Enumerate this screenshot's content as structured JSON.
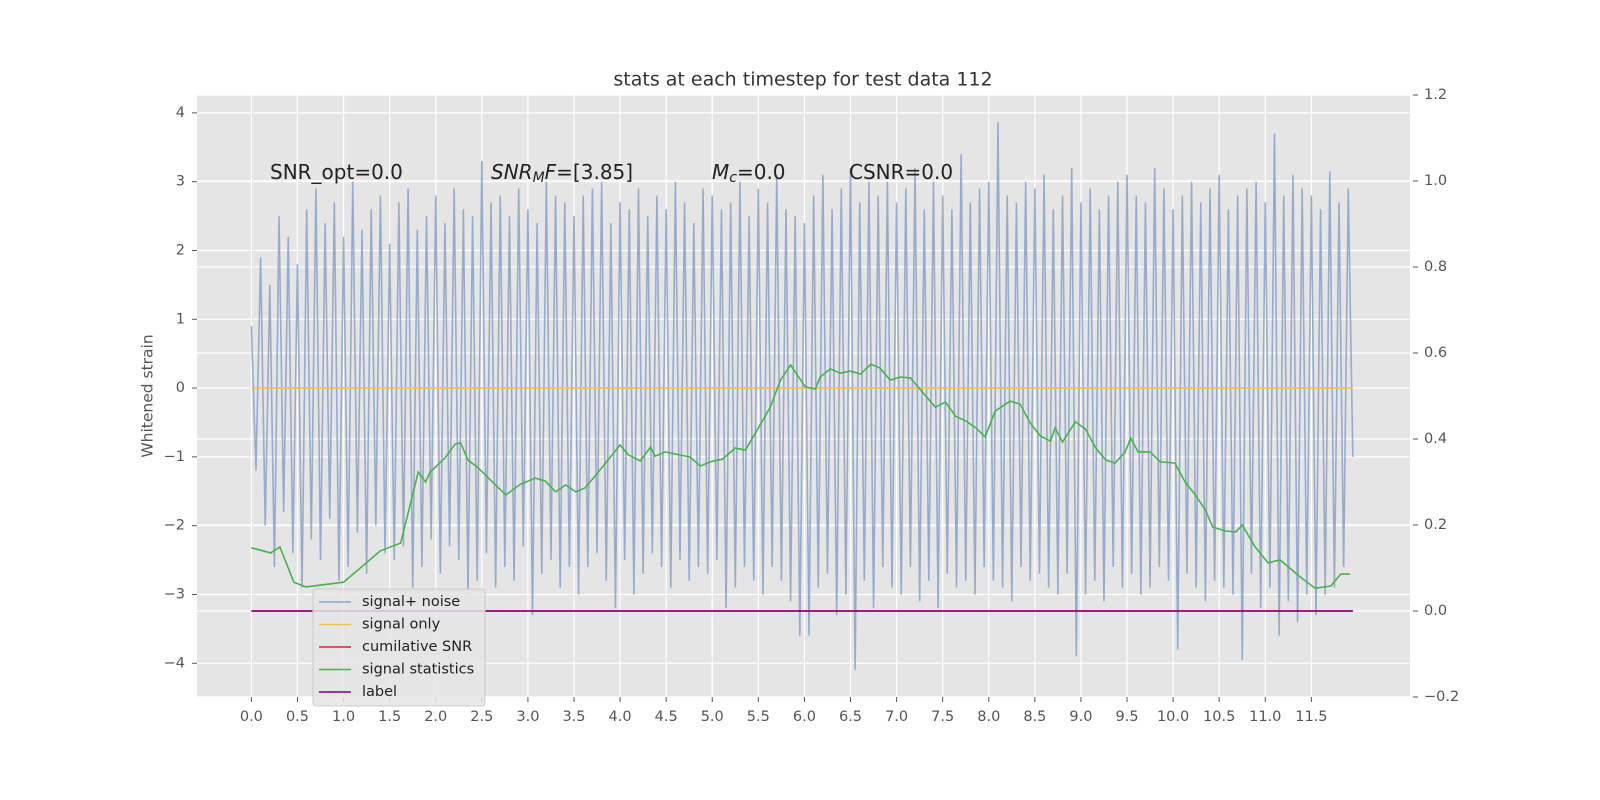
{
  "chart_data": {
    "type": "line",
    "title": "stats at each timestep for test data 112",
    "y_label": "Whitened strain",
    "grid": true,
    "background": "#e5e5e5",
    "legend_position": "lower left",
    "xlim": [
      -0.59,
      12.57
    ],
    "ylim": [
      -4.49,
      4.26
    ],
    "y2lim": [
      -0.2,
      1.2
    ],
    "xticks": [
      {
        "value": 0,
        "label": "0.0"
      },
      {
        "value": 0.5,
        "label": "0.5"
      },
      {
        "value": 1,
        "label": "1.0"
      },
      {
        "value": 1.5,
        "label": "1.5"
      },
      {
        "value": 2,
        "label": "2.0"
      },
      {
        "value": 2.5,
        "label": "2.5"
      },
      {
        "value": 3,
        "label": "3.0"
      },
      {
        "value": 3.5,
        "label": "3.5"
      },
      {
        "value": 4,
        "label": "4.0"
      },
      {
        "value": 4.5,
        "label": "4.5"
      },
      {
        "value": 5,
        "label": "5.0"
      },
      {
        "value": 5.5,
        "label": "5.5"
      },
      {
        "value": 6,
        "label": "6.0"
      },
      {
        "value": 6.5,
        "label": "6.5"
      },
      {
        "value": 7,
        "label": "7.0"
      },
      {
        "value": 7.5,
        "label": "7.5"
      },
      {
        "value": 8,
        "label": "8.0"
      },
      {
        "value": 8.5,
        "label": "8.5"
      },
      {
        "value": 9,
        "label": "9.0"
      },
      {
        "value": 9.5,
        "label": "9.5"
      },
      {
        "value": 10,
        "label": "10.0"
      },
      {
        "value": 10.5,
        "label": "10.5"
      },
      {
        "value": 11,
        "label": "11.0"
      },
      {
        "value": 11.5,
        "label": "11.5"
      }
    ],
    "yticks": [
      {
        "value": -4,
        "label": "−4"
      },
      {
        "value": -3,
        "label": "−3"
      },
      {
        "value": -2,
        "label": "−2"
      },
      {
        "value": -1,
        "label": "−1"
      },
      0,
      1,
      2,
      3,
      4
    ],
    "y2ticks": [
      {
        "value": -0.2,
        "label": "−0.2"
      },
      {
        "value": 0,
        "label": "0.0"
      },
      0.2,
      0.4,
      0.6,
      0.8,
      {
        "value": 1,
        "label": "1.0"
      },
      1.2
    ],
    "annotations": [
      [
        {
          "text": "SNR_opt=0.0"
        }
      ],
      [
        {
          "text": "SNR",
          "italic": true
        },
        {
          "text": "M",
          "italic": true,
          "sub": true
        },
        {
          "text": "F",
          "italic": true
        },
        {
          "text": "=[3.85]"
        }
      ],
      [
        {
          "text": "M",
          "italic": true
        },
        {
          "text": "c",
          "italic": true,
          "sub": true
        },
        {
          "text": "=0.0"
        }
      ],
      [
        {
          "text": "CSNR=0.0"
        }
      ]
    ],
    "series": [
      {
        "name": "signal+ noise",
        "color": "#8fa4c8",
        "axis": "y",
        "x": [
          0,
          0.05,
          0.1,
          0.15,
          0.2,
          0.25,
          0.3,
          0.35,
          0.4,
          0.45,
          0.5,
          0.55,
          0.6,
          0.65,
          0.7,
          0.75,
          0.8,
          0.85,
          0.9,
          0.95,
          1,
          1.05,
          1.1,
          1.15,
          1.2,
          1.25,
          1.3,
          1.35,
          1.4,
          1.45,
          1.5,
          1.55,
          1.6,
          1.65,
          1.7,
          1.75,
          1.8,
          1.85,
          1.9,
          1.95,
          2,
          2.05,
          2.1,
          2.15,
          2.2,
          2.25,
          2.3,
          2.35,
          2.4,
          2.45,
          2.5,
          2.55,
          2.6,
          2.65,
          2.7,
          2.75,
          2.8,
          2.85,
          2.9,
          2.95,
          3,
          3.05,
          3.1,
          3.15,
          3.2,
          3.25,
          3.3,
          3.35,
          3.4,
          3.45,
          3.5,
          3.55,
          3.6,
          3.65,
          3.7,
          3.75,
          3.8,
          3.85,
          3.9,
          3.95,
          4,
          4.05,
          4.1,
          4.15,
          4.2,
          4.25,
          4.3,
          4.35,
          4.4,
          4.45,
          4.5,
          4.55,
          4.6,
          4.65,
          4.7,
          4.75,
          4.8,
          4.85,
          4.9,
          4.95,
          5,
          5.05,
          5.1,
          5.15,
          5.2,
          5.25,
          5.3,
          5.35,
          5.4,
          5.45,
          5.5,
          5.55,
          5.6,
          5.65,
          5.7,
          5.75,
          5.8,
          5.85,
          5.9,
          5.95,
          6,
          6.05,
          6.1,
          6.15,
          6.2,
          6.25,
          6.3,
          6.35,
          6.4,
          6.45,
          6.5,
          6.55,
          6.6,
          6.65,
          6.7,
          6.75,
          6.8,
          6.85,
          6.9,
          6.95,
          7,
          7.05,
          7.1,
          7.15,
          7.2,
          7.25,
          7.3,
          7.35,
          7.4,
          7.45,
          7.5,
          7.55,
          7.6,
          7.65,
          7.7,
          7.75,
          7.8,
          7.85,
          7.9,
          7.95,
          8,
          8.05,
          8.1,
          8.15,
          8.2,
          8.25,
          8.3,
          8.35,
          8.4,
          8.45,
          8.5,
          8.55,
          8.6,
          8.65,
          8.7,
          8.75,
          8.8,
          8.85,
          8.9,
          8.95,
          9,
          9.05,
          9.1,
          9.15,
          9.2,
          9.25,
          9.3,
          9.35,
          9.4,
          9.45,
          9.5,
          9.55,
          9.6,
          9.65,
          9.7,
          9.75,
          9.8,
          9.85,
          9.9,
          9.95,
          10,
          10.05,
          10.1,
          10.15,
          10.2,
          10.25,
          10.3,
          10.35,
          10.4,
          10.45,
          10.5,
          10.55,
          10.6,
          10.65,
          10.7,
          10.75,
          10.8,
          10.85,
          10.9,
          10.95,
          11,
          11.05,
          11.1,
          11.15,
          11.2,
          11.25,
          11.3,
          11.35,
          11.4,
          11.45,
          11.5,
          11.55,
          11.6,
          11.65,
          11.7,
          11.75,
          11.8,
          11.85,
          11.9,
          11.95
        ],
        "values": [
          0.9,
          -1.2,
          1.9,
          -2.0,
          1.5,
          -2.6,
          2.5,
          -1.8,
          2.2,
          -2.4,
          1.8,
          -2.9,
          2.6,
          -2.2,
          2.9,
          -2.5,
          2.4,
          -1.9,
          2.7,
          -2.8,
          2.2,
          -2.6,
          3.0,
          -2.1,
          2.3,
          -2.7,
          2.6,
          -2.0,
          2.8,
          -2.4,
          2.1,
          -2.5,
          2.7,
          -2.3,
          2.9,
          -2.9,
          2.3,
          -2.6,
          2.5,
          -2.2,
          2.8,
          -2.7,
          2.4,
          -2.3,
          2.9,
          -2.5,
          2.6,
          -3.0,
          2.5,
          -2.8,
          3.3,
          -2.4,
          2.7,
          -2.9,
          2.8,
          -2.6,
          2.5,
          -2.8,
          2.9,
          -2.3,
          2.6,
          -3.3,
          2.4,
          -2.7,
          3.0,
          -2.5,
          2.8,
          -2.9,
          2.7,
          -2.6,
          2.5,
          -3.0,
          2.8,
          -2.6,
          2.9,
          -2.4,
          3.0,
          -2.8,
          2.4,
          -3.2,
          2.7,
          -2.5,
          2.6,
          -3.0,
          2.9,
          -2.7,
          2.5,
          -2.4,
          2.8,
          -2.6,
          2.6,
          -2.9,
          3.0,
          -2.5,
          2.7,
          -2.8,
          2.4,
          -2.6,
          2.9,
          -2.7,
          2.8,
          -2.5,
          2.6,
          -3.2,
          2.7,
          -2.9,
          3.0,
          -2.6,
          2.5,
          -2.8,
          2.9,
          -3.0,
          2.7,
          -2.6,
          3.1,
          -2.8,
          2.6,
          -3.1,
          2.5,
          -3.6,
          2.4,
          -3.6,
          2.8,
          -2.9,
          3.1,
          -2.7,
          2.6,
          -3.3,
          2.9,
          -3.0,
          3.2,
          -4.1,
          2.7,
          -2.8,
          3.0,
          -3.2,
          2.8,
          -2.6,
          3.0,
          -2.9,
          2.7,
          -3.0,
          2.9,
          -2.6,
          3.2,
          -3.1,
          2.6,
          -2.8,
          3.0,
          -3.2,
          2.8,
          -2.7,
          2.6,
          -2.9,
          3.4,
          -2.8,
          2.7,
          -3.0,
          2.9,
          -2.6,
          3.0,
          -2.8,
          3.87,
          -2.9,
          2.8,
          -3.1,
          2.7,
          -2.6,
          3.0,
          -2.8,
          2.9,
          -2.7,
          3.1,
          -2.9,
          2.6,
          -3.0,
          2.8,
          -2.7,
          3.2,
          -3.9,
          2.7,
          -3.0,
          2.9,
          -2.8,
          2.6,
          -3.1,
          2.8,
          -2.6,
          3.0,
          -2.9,
          3.1,
          -2.7,
          2.8,
          -3.0,
          2.7,
          -2.9,
          3.2,
          -2.6,
          2.9,
          -2.8,
          2.6,
          -3.8,
          2.8,
          -2.7,
          3.0,
          -2.9,
          2.7,
          -3.1,
          2.9,
          -2.8,
          3.1,
          -2.9,
          2.6,
          -3.0,
          2.8,
          -3.95,
          2.9,
          -2.7,
          3.0,
          -3.2,
          2.7,
          -2.9,
          3.7,
          -3.6,
          2.8,
          -3.1,
          3.1,
          -3.4,
          2.9,
          -3.0,
          2.8,
          -3.3,
          2.6,
          -3.0,
          3.15,
          -2.9,
          2.7,
          -2.6,
          2.9,
          -1.0
        ]
      },
      {
        "name": "signal only",
        "color": "#f0c050",
        "axis": "y",
        "x": [
          0,
          11.95
        ],
        "values": [
          0,
          0
        ]
      },
      {
        "name": "cumilative SNR",
        "color": "#d62728",
        "axis": "y2",
        "x": [
          0,
          11.95
        ],
        "values": [
          0,
          0
        ]
      },
      {
        "name": "signal statistics",
        "color": "#4caf50",
        "axis": "y2",
        "x": [
          0,
          0.21,
          0.31,
          0.46,
          0.59,
          1.0,
          1.4,
          1.62,
          1.81,
          1.89,
          1.94,
          2.1,
          2.21,
          2.27,
          2.35,
          2.46,
          2.65,
          2.76,
          2.92,
          3.08,
          3.19,
          3.3,
          3.41,
          3.52,
          3.62,
          3.79,
          4.0,
          4.09,
          4.22,
          4.33,
          4.38,
          4.49,
          4.76,
          4.87,
          4.98,
          5.11,
          5.25,
          5.36,
          5.52,
          5.63,
          5.74,
          5.85,
          5.96,
          6.01,
          6.12,
          6.17,
          6.28,
          6.39,
          6.5,
          6.61,
          6.72,
          6.82,
          6.93,
          7.04,
          7.15,
          7.26,
          7.42,
          7.53,
          7.64,
          7.75,
          7.86,
          7.96,
          8.07,
          8.23,
          8.34,
          8.45,
          8.56,
          8.67,
          8.72,
          8.8,
          8.94,
          9.05,
          9.16,
          9.27,
          9.37,
          9.48,
          9.54,
          9.62,
          9.75,
          9.86,
          10.02,
          10.13,
          10.24,
          10.35,
          10.43,
          10.57,
          10.68,
          10.75,
          10.89,
          11.03,
          11.16,
          11.38,
          11.54,
          11.71,
          11.82,
          11.92
        ],
        "values": [
          0.147,
          0.135,
          0.149,
          0.067,
          0.056,
          0.067,
          0.14,
          0.158,
          0.323,
          0.3,
          0.323,
          0.356,
          0.388,
          0.391,
          0.351,
          0.333,
          0.293,
          0.27,
          0.295,
          0.309,
          0.302,
          0.277,
          0.293,
          0.277,
          0.286,
          0.33,
          0.386,
          0.363,
          0.349,
          0.381,
          0.36,
          0.37,
          0.358,
          0.337,
          0.347,
          0.353,
          0.379,
          0.374,
          0.433,
          0.474,
          0.537,
          0.572,
          0.537,
          0.521,
          0.516,
          0.544,
          0.563,
          0.553,
          0.558,
          0.551,
          0.574,
          0.565,
          0.537,
          0.544,
          0.542,
          0.514,
          0.474,
          0.486,
          0.453,
          0.442,
          0.426,
          0.405,
          0.465,
          0.488,
          0.481,
          0.437,
          0.407,
          0.395,
          0.426,
          0.393,
          0.44,
          0.423,
          0.379,
          0.351,
          0.344,
          0.37,
          0.402,
          0.37,
          0.37,
          0.347,
          0.344,
          0.3,
          0.27,
          0.235,
          0.195,
          0.186,
          0.184,
          0.2,
          0.149,
          0.112,
          0.119,
          0.079,
          0.053,
          0.058,
          0.086,
          0.086
        ]
      },
      {
        "name": "label",
        "color": "#800080",
        "axis": "y2",
        "x": [
          0,
          11.95
        ],
        "values": [
          0,
          0
        ]
      }
    ]
  }
}
